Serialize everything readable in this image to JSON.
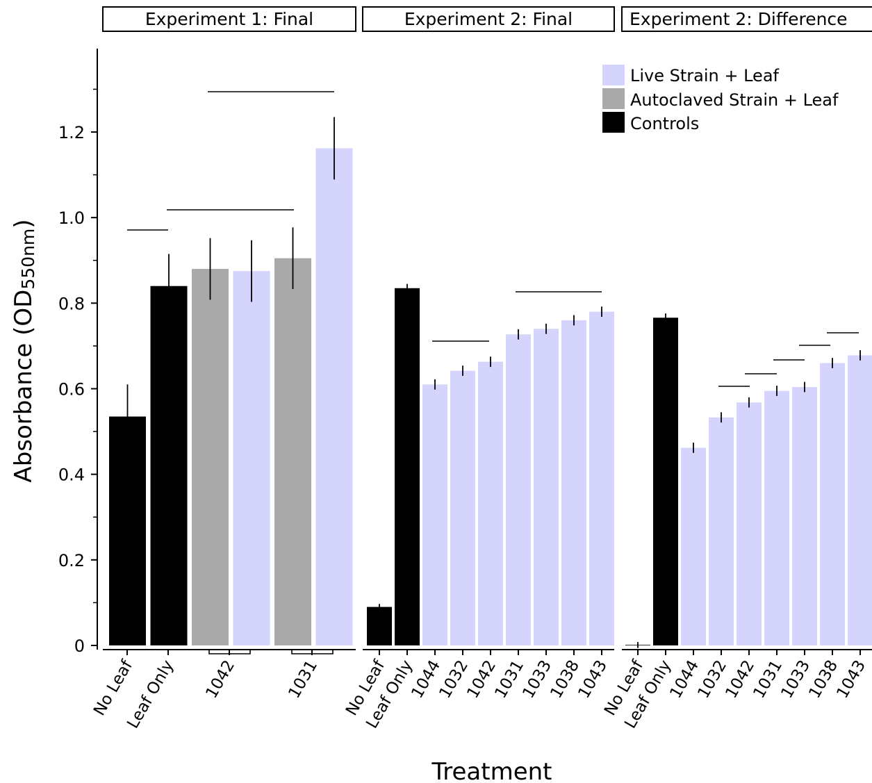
{
  "chart_data": {
    "type": "bar",
    "ylabel": "Absorbance (OD",
    "ylabel_sub": "550nm",
    "ylabel_close": ")",
    "xlabel": "Treatment",
    "ylim": [
      0,
      1.38
    ],
    "yticks": [
      "0",
      "0.2",
      "0.4",
      "0.6",
      "0.8",
      "1.0",
      "1.2"
    ],
    "yticks_values": [
      0,
      0.2,
      0.4,
      0.6,
      0.8,
      1.0,
      1.2
    ],
    "grid": false,
    "legend_position": "top-right",
    "legend": [
      {
        "label": "Live Strain + Leaf",
        "color": "#d4d4fc"
      },
      {
        "label": "Autoclaved Strain + Leaf",
        "color": "#a9a9a9"
      },
      {
        "label": "Controls",
        "color": "#000000"
      }
    ],
    "colors": {
      "Live": "#d4d4fc",
      "Autoclaved": "#a9a9a9",
      "Control": "#000000"
    },
    "panels": [
      {
        "title": "Experiment 1: Final",
        "tick_labels": [
          "No Leaf",
          "Leaf Only",
          "1042",
          "1031"
        ],
        "bars": [
          {
            "group": "Control",
            "value": 0.535,
            "err": 0.075
          },
          {
            "group": "Control",
            "value": 0.84,
            "err": 0.075
          },
          {
            "group": "Autoclaved",
            "value": 0.88,
            "err": 0.072
          },
          {
            "group": "Live",
            "value": 0.875,
            "err": 0.072
          },
          {
            "group": "Autoclaved",
            "value": 0.905,
            "err": 0.072
          },
          {
            "group": "Live",
            "value": 1.162,
            "err": 0.073
          }
        ]
      },
      {
        "title": "Experiment 2: Final",
        "tick_labels": [
          "No Leaf",
          "Leaf Only",
          "1044",
          "1032",
          "1042",
          "1031",
          "1033",
          "1038",
          "1043"
        ],
        "bars": [
          {
            "group": "Control",
            "value": 0.09,
            "err": 0.007
          },
          {
            "group": "Control",
            "value": 0.835,
            "err": 0.01
          },
          {
            "group": "Live",
            "value": 0.61,
            "err": 0.012
          },
          {
            "group": "Live",
            "value": 0.642,
            "err": 0.012
          },
          {
            "group": "Live",
            "value": 0.663,
            "err": 0.012
          },
          {
            "group": "Live",
            "value": 0.727,
            "err": 0.012
          },
          {
            "group": "Live",
            "value": 0.74,
            "err": 0.012
          },
          {
            "group": "Live",
            "value": 0.76,
            "err": 0.012
          },
          {
            "group": "Live",
            "value": 0.78,
            "err": 0.012
          }
        ]
      },
      {
        "title": "Experiment 2: Difference",
        "tick_labels": [
          "No Leaf",
          "Leaf Only",
          "1044",
          "1032",
          "1042",
          "1031",
          "1033",
          "1038",
          "1043"
        ],
        "bars": [
          {
            "group": "Control",
            "value": 0.001,
            "err": 0.007
          },
          {
            "group": "Control",
            "value": 0.766,
            "err": 0.01
          },
          {
            "group": "Live",
            "value": 0.462,
            "err": 0.012
          },
          {
            "group": "Live",
            "value": 0.533,
            "err": 0.012
          },
          {
            "group": "Live",
            "value": 0.568,
            "err": 0.012
          },
          {
            "group": "Live",
            "value": 0.595,
            "err": 0.012
          },
          {
            "group": "Live",
            "value": 0.604,
            "err": 0.012
          },
          {
            "group": "Live",
            "value": 0.66,
            "err": 0.012
          },
          {
            "group": "Live",
            "value": 0.678,
            "err": 0.012
          }
        ]
      }
    ]
  }
}
